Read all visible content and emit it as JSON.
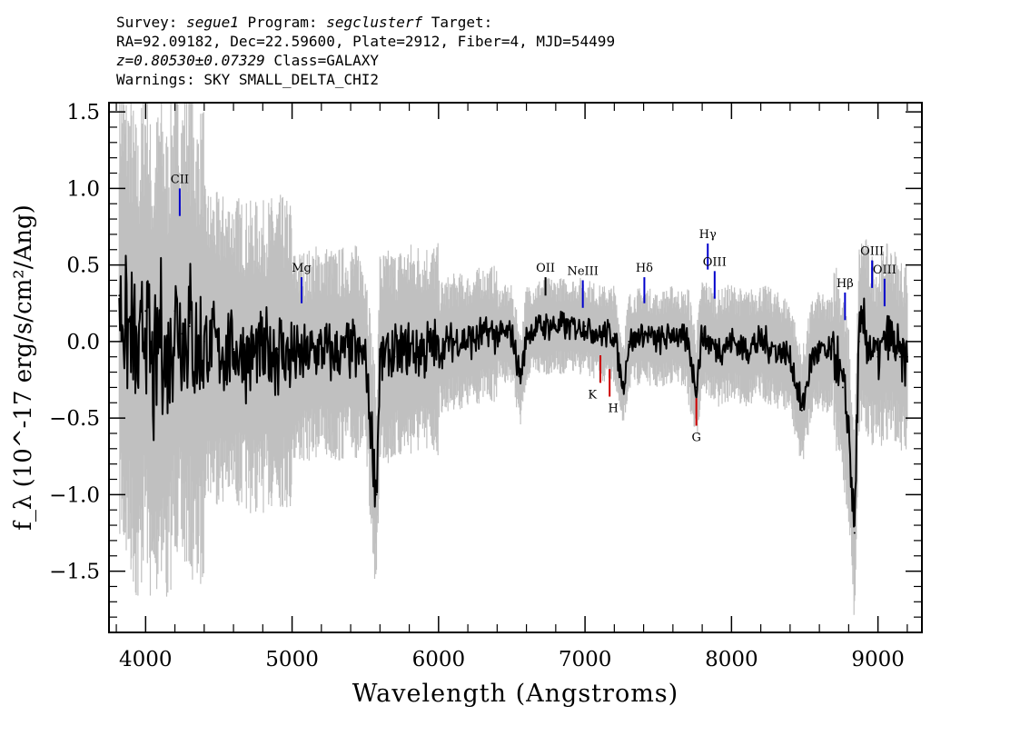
{
  "header": {
    "survey_label": "Survey: ",
    "survey": "segue1",
    "program_label": " Program: ",
    "program": "segclusterf",
    "target_label": " Target:",
    "line2": "RA=92.09182, Dec=22.59600, Plate=2912, Fiber=4, MJD=54499",
    "redshift": "z=0.80530±0.07329",
    "class_text": " Class=GALAXY",
    "warnings": "Warnings: SKY SMALL_DELTA_CHI2"
  },
  "chart_data": {
    "type": "line",
    "xlabel": "Wavelength (Angstroms)",
    "ylabel": "f_λ (10^-17 erg/s/cm²/Ang)",
    "xlim": [
      3750,
      9300
    ],
    "ylim": [
      -1.9,
      1.56
    ],
    "xticks": [
      4000,
      5000,
      6000,
      7000,
      8000,
      9000
    ],
    "xtick_labels": [
      "4000",
      "5000",
      "6000",
      "7000",
      "8000",
      "9000"
    ],
    "yticks": [
      1.5,
      1.0,
      0.5,
      0.0,
      -0.5,
      -1.0,
      -1.5
    ],
    "ytick_labels": [
      "1.5",
      "1.0",
      "0.5",
      "0.0",
      "−0.5",
      "−1.0",
      "−1.5"
    ],
    "series": [
      {
        "color": "#000000",
        "x": [
          3820,
          3860,
          3900,
          3950,
          4000,
          4050,
          4100,
          4150,
          4200,
          4250,
          4300,
          4350,
          4400,
          4500,
          4600,
          4700,
          4800,
          4900,
          5000,
          5100,
          5200,
          5300,
          5400,
          5500,
          5577,
          5600,
          5700,
          5800,
          5900,
          6000,
          6100,
          6200,
          6300,
          6400,
          6500,
          6560,
          6600,
          6700,
          6800,
          6900,
          7000,
          7100,
          7200,
          7260,
          7300,
          7400,
          7500,
          7600,
          7700,
          7760,
          7800,
          7850,
          7900,
          8000,
          8100,
          8200,
          8300,
          8400,
          8480,
          8550,
          8600,
          8650,
          8700,
          8760,
          8800,
          8840,
          8870,
          8900,
          8950,
          9000,
          9050,
          9100,
          9150,
          9200
        ],
        "values": [
          0.3,
          0.1,
          0.05,
          -0.2,
          0.2,
          -0.3,
          0.1,
          -0.2,
          0.2,
          0.05,
          0.1,
          -0.1,
          0.0,
          -0.05,
          -0.05,
          -0.1,
          -0.1,
          -0.05,
          -0.1,
          -0.1,
          -0.05,
          -0.1,
          -0.05,
          -0.1,
          -1.0,
          -0.1,
          -0.1,
          -0.05,
          -0.05,
          -0.05,
          0.0,
          0.0,
          0.05,
          0.05,
          0.05,
          -0.25,
          0.05,
          0.1,
          0.1,
          0.1,
          0.1,
          0.05,
          0.05,
          -0.3,
          0.0,
          0.05,
          0.0,
          0.05,
          0.0,
          -0.3,
          0.05,
          0.0,
          -0.05,
          0.0,
          -0.05,
          0.0,
          -0.05,
          -0.1,
          -0.45,
          -0.1,
          -0.05,
          -0.1,
          -0.05,
          -0.3,
          -0.55,
          -1.25,
          0.0,
          0.1,
          -0.05,
          -0.1,
          0.0,
          0.0,
          -0.1,
          -0.1
        ]
      }
    ],
    "noise_color": "#c0c0c0",
    "line_markers": [
      {
        "label": "CII",
        "x": 4233,
        "y0": 0.82,
        "y1": 1.0,
        "color": "#0000cc"
      },
      {
        "label": "Mg",
        "x": 5065,
        "y0": 0.25,
        "y1": 0.42,
        "color": "#0000cc"
      },
      {
        "label": "OII",
        "x": 6730,
        "y0": 0.3,
        "y1": 0.42,
        "color": "#000000"
      },
      {
        "label": "NeIII",
        "x": 6985,
        "y0": 0.22,
        "y1": 0.4,
        "color": "#0000cc"
      },
      {
        "label": "Hδ",
        "x": 7405,
        "y0": 0.25,
        "y1": 0.42,
        "color": "#0000cc"
      },
      {
        "label": "Hγ",
        "x": 7838,
        "y0": 0.47,
        "y1": 0.64,
        "color": "#0000cc"
      },
      {
        "label": "OIII",
        "x": 7885,
        "y0": 0.28,
        "y1": 0.46,
        "color": "#0000cc"
      },
      {
        "label": "Hβ",
        "x": 8775,
        "y0": 0.14,
        "y1": 0.32,
        "color": "#0000cc"
      },
      {
        "label": "OIII",
        "x": 8960,
        "y0": 0.35,
        "y1": 0.53,
        "color": "#0000cc"
      },
      {
        "label": "OIII",
        "x": 9045,
        "y0": 0.23,
        "y1": 0.41,
        "color": "#0000cc"
      },
      {
        "label": "K",
        "x": 7105,
        "y0": -0.27,
        "y1": -0.09,
        "color": "#cc0000"
      },
      {
        "label": "H",
        "x": 7168,
        "y0": -0.36,
        "y1": -0.18,
        "color": "#cc0000"
      },
      {
        "label": "G",
        "x": 7760,
        "y0": -0.55,
        "y1": -0.37,
        "color": "#cc0000"
      }
    ]
  }
}
